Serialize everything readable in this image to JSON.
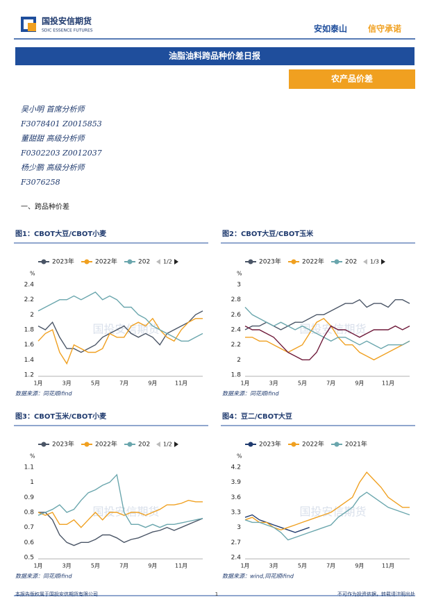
{
  "header": {
    "logo_cn": "国投安信期货",
    "logo_en": "SDIC ESSENCE FUTURES",
    "slogan_a": "安如泰山",
    "slogan_b": "信守承诺"
  },
  "title": "油脂油料跨品种价差日报",
  "tag": "农产品价差",
  "analysts": [
    "吴小明 首席分析师",
    "F3078401 Z0015853",
    "董甜甜 高级分析师",
    "F0302203 Z0012037",
    "杨少鹏 高级分析师",
    "F3076258"
  ],
  "section": "一、跨品种价差",
  "watermark": "国投安信期货",
  "chart_data": [
    {
      "type": "line",
      "title": "图1：CBOT大豆/CBOT小麦",
      "source": "数据来源：同花顺ifind",
      "y_label": "%",
      "legend_pager": "1/2",
      "categories": [
        "1月",
        null,
        null,
        null,
        "3月",
        null,
        null,
        null,
        "5月",
        null,
        null,
        null,
        "7月",
        null,
        null,
        null,
        "9月",
        null,
        null,
        null,
        "11月",
        null,
        null,
        null
      ],
      "ylim": [
        1.2,
        2.4
      ],
      "yticks": [
        1.2,
        1.4,
        1.6,
        1.8,
        2,
        2.2,
        2.4
      ],
      "grid": false,
      "series": [
        {
          "name": "2023年",
          "color": "#4a5566",
          "values": [
            1.85,
            1.8,
            1.9,
            1.7,
            1.55,
            1.55,
            1.5,
            1.55,
            1.6,
            1.7,
            1.75,
            1.8,
            1.85,
            1.75,
            1.7,
            1.75,
            1.7,
            1.6,
            1.75,
            1.8,
            1.85,
            1.9,
            2.0,
            2.05
          ]
        },
        {
          "name": "2022年",
          "color": "#f0a020",
          "values": [
            1.65,
            1.75,
            1.8,
            1.5,
            1.35,
            1.6,
            1.55,
            1.5,
            1.5,
            1.55,
            1.75,
            1.7,
            1.7,
            1.85,
            1.9,
            1.85,
            1.95,
            1.8,
            1.7,
            1.65,
            1.8,
            1.9,
            1.95,
            1.95
          ]
        },
        {
          "name": "202",
          "color": "#6aa6ad",
          "values": [
            2.05,
            2.1,
            2.15,
            2.2,
            2.2,
            2.25,
            2.2,
            2.25,
            2.3,
            2.2,
            2.25,
            2.2,
            2.1,
            2.1,
            2.0,
            1.95,
            1.85,
            1.8,
            1.75,
            1.7,
            1.65,
            1.65,
            1.7,
            1.75
          ]
        }
      ]
    },
    {
      "type": "line",
      "title": "图2：CBOT大豆/CBOT玉米",
      "source": "数据来源：同花顺ifind",
      "y_label": "%",
      "legend_pager": "1/3",
      "categories": [
        "1月",
        null,
        null,
        null,
        "3月",
        null,
        null,
        null,
        "5月",
        null,
        null,
        null,
        "7月",
        null,
        null,
        null,
        "9月",
        null,
        null,
        null,
        "11月",
        null,
        null,
        null
      ],
      "ylim": [
        1.8,
        3
      ],
      "yticks": [
        1.8,
        2,
        2.2,
        2.4,
        2.6,
        2.8,
        3
      ],
      "grid": false,
      "series": [
        {
          "name": "2023年",
          "color": "#4a5566",
          "values": [
            2.4,
            2.45,
            2.45,
            2.5,
            2.45,
            2.4,
            2.45,
            2.5,
            2.5,
            2.55,
            2.6,
            2.6,
            2.65,
            2.7,
            2.75,
            2.75,
            2.8,
            2.7,
            2.75,
            2.75,
            2.7,
            2.8,
            2.8,
            2.75
          ]
        },
        {
          "name": "2022年",
          "color": "#f0a020",
          "values": [
            2.3,
            2.3,
            2.25,
            2.25,
            2.2,
            2.15,
            2.1,
            2.15,
            2.2,
            2.35,
            2.5,
            2.55,
            2.45,
            2.3,
            2.2,
            2.2,
            2.1,
            2.05,
            2.0,
            2.05,
            2.1,
            2.15,
            2.2,
            2.25
          ]
        },
        {
          "name": "202",
          "color": "#6aa6ad",
          "values": [
            2.7,
            2.6,
            2.55,
            2.5,
            2.45,
            2.5,
            2.45,
            2.4,
            2.45,
            2.4,
            2.35,
            2.3,
            2.25,
            2.3,
            2.3,
            2.25,
            2.2,
            2.25,
            2.2,
            2.15,
            2.2,
            2.2,
            2.2,
            2.25
          ]
        },
        {
          "color": "#6e1a3a",
          "values": [
            2.45,
            2.4,
            2.4,
            2.35,
            2.3,
            2.2,
            2.1,
            2.05,
            2.0,
            2.0,
            2.1,
            2.3,
            2.45,
            2.4,
            2.4,
            2.35,
            2.3,
            2.35,
            2.4,
            2.4,
            2.4,
            2.45,
            2.4,
            2.45
          ]
        }
      ]
    },
    {
      "type": "line",
      "title": "图3：CBOT玉米/CBOT小麦",
      "source": "数据来源：同花顺ifind",
      "y_label": "%",
      "legend_pager": "1/2",
      "categories": [
        "1月",
        null,
        null,
        null,
        "3月",
        null,
        null,
        null,
        "5月",
        null,
        null,
        null,
        "7月",
        null,
        null,
        null,
        "9月",
        null,
        null,
        null,
        "11月",
        null,
        null,
        null
      ],
      "ylim": [
        0.5,
        1.1
      ],
      "yticks": [
        0.5,
        0.6,
        0.7,
        0.8,
        0.9,
        1,
        1.1
      ],
      "grid": false,
      "series": [
        {
          "name": "2023年",
          "color": "#4a5566",
          "values": [
            0.8,
            0.8,
            0.75,
            0.65,
            0.6,
            0.58,
            0.6,
            0.6,
            0.62,
            0.65,
            0.65,
            0.63,
            0.6,
            0.62,
            0.63,
            0.65,
            0.67,
            0.68,
            0.7,
            0.68,
            0.7,
            0.72,
            0.74,
            0.76
          ]
        },
        {
          "name": "2022年",
          "color": "#f0a020",
          "values": [
            0.8,
            0.78,
            0.8,
            0.72,
            0.72,
            0.75,
            0.7,
            0.75,
            0.8,
            0.75,
            0.8,
            0.8,
            0.78,
            0.8,
            0.8,
            0.78,
            0.8,
            0.82,
            0.85,
            0.85,
            0.86,
            0.88,
            0.87,
            0.87
          ]
        },
        {
          "name": "202",
          "color": "#6aa6ad",
          "values": [
            0.78,
            0.8,
            0.82,
            0.85,
            0.8,
            0.82,
            0.88,
            0.93,
            0.95,
            0.98,
            1.0,
            1.05,
            0.8,
            0.72,
            0.72,
            0.7,
            0.72,
            0.7,
            0.72,
            0.72,
            0.73,
            0.74,
            0.75,
            0.76
          ]
        }
      ]
    },
    {
      "type": "line",
      "title": "图4：豆二/CBOT大豆",
      "source": "数据来源：wind,同花顺ifind",
      "y_label": "%",
      "categories": [
        "1月",
        null,
        null,
        null,
        "3月",
        null,
        null,
        null,
        "5月",
        null,
        null,
        null,
        "7月",
        null,
        null,
        null,
        "9月",
        null,
        null,
        null,
        "11月",
        null,
        null,
        null
      ],
      "ylim": [
        2.4,
        4.2
      ],
      "yticks": [
        2.4,
        2.7,
        3,
        3.3,
        3.6,
        3.9,
        4.2
      ],
      "grid": false,
      "series": [
        {
          "name": "2023年",
          "color": "#1f3a6e",
          "values": [
            3.2,
            3.25,
            3.15,
            3.1,
            3.05,
            3.0,
            2.95,
            2.9,
            2.95,
            3.0,
            null,
            null,
            null,
            null,
            null,
            null,
            null,
            null,
            null,
            null,
            null,
            null,
            null,
            null
          ]
        },
        {
          "name": "2022年",
          "color": "#f0a020",
          "values": [
            3.15,
            3.2,
            3.1,
            3.1,
            3.0,
            2.95,
            3.0,
            3.05,
            3.1,
            3.15,
            3.2,
            3.25,
            3.3,
            3.4,
            3.5,
            3.6,
            3.9,
            4.1,
            3.95,
            3.8,
            3.6,
            3.5,
            3.4,
            3.4
          ]
        },
        {
          "name": "2021年",
          "color": "#6aa6ad",
          "values": [
            3.15,
            3.1,
            3.1,
            3.05,
            3.0,
            2.9,
            2.75,
            2.8,
            2.85,
            2.9,
            2.95,
            3.0,
            3.05,
            3.2,
            3.3,
            3.4,
            3.6,
            3.7,
            3.6,
            3.5,
            3.4,
            3.35,
            3.3,
            3.25
          ]
        }
      ]
    }
  ],
  "footer": {
    "left": "本报告版权属于国投安信期货有限公司",
    "page": "1",
    "right": "不可作为投资依据，转载请注明出处"
  }
}
